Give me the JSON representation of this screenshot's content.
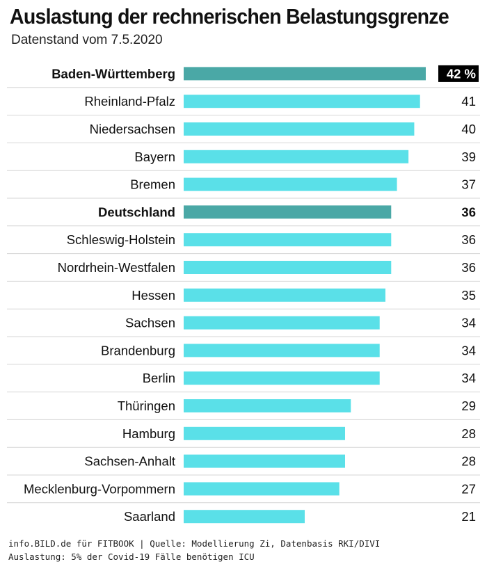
{
  "header": {
    "title": "Auslastung der rechnerischen Belastungsgrenze",
    "subtitle": "Datenstand vom 7.5.2020"
  },
  "footer": {
    "line1": "info.BILD.de für FITBOOK | Quelle: Modellierung Zi, Datenbasis RKI/DIVI",
    "line2": "Auslastung: 5% der Covid-19 Fälle benötigen ICU"
  },
  "colors": {
    "bar": "#5ae0e8",
    "highlight_bar": "#4aa8a6",
    "highlight_label_bg": "#000000",
    "gridline": "#d6d6d6"
  },
  "chart_data": {
    "type": "bar",
    "orientation": "horizontal",
    "title": "Auslastung der rechnerischen Belastungsgrenze",
    "subtitle": "Datenstand vom 7.5.2020",
    "xlim": [
      0,
      42
    ],
    "unit_first_label": "%",
    "categories": [
      "Baden-Württemberg",
      "Rheinland-Pfalz",
      "Niedersachsen",
      "Bayern",
      "Bremen",
      "Deutschland",
      "Schleswig-Holstein",
      "Nordrhein-Westfalen",
      "Hessen",
      "Sachsen",
      "Brandenburg",
      "Berlin",
      "Thüringen",
      "Hamburg",
      "Sachsen-Anhalt",
      "Mecklenburg-Vorpommern",
      "Saarland"
    ],
    "values": [
      42,
      41,
      40,
      39,
      37,
      36,
      36,
      36,
      35,
      34,
      34,
      34,
      29,
      28,
      28,
      27,
      21
    ],
    "value_labels": [
      "42 %",
      "41",
      "40",
      "39",
      "37",
      "36",
      "36",
      "36",
      "35",
      "34",
      "34",
      "34",
      "29",
      "28",
      "28",
      "27",
      "21"
    ],
    "highlighted": [
      "Baden-Württemberg",
      "Deutschland"
    ],
    "grid": true
  }
}
